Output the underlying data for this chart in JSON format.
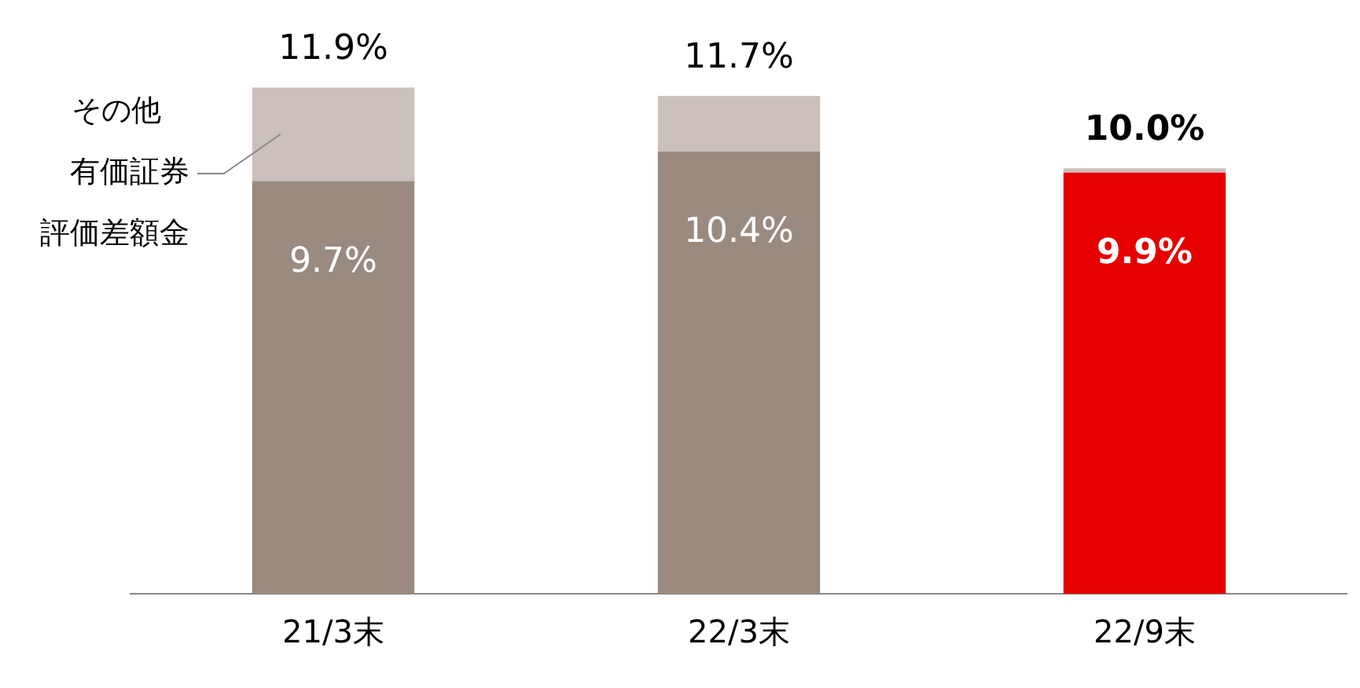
{
  "chart_data": {
    "type": "bar",
    "stacked": true,
    "categories": [
      "21/3末",
      "22/3末",
      "22/9末"
    ],
    "series": [
      {
        "color": "#9b8a80",
        "colors": [
          "#9b8a80",
          "#9b8a80",
          "#e60000"
        ],
        "values": [
          9.7,
          10.4,
          9.9
        ],
        "value_labels": [
          "9.7%",
          "10.4%",
          "9.9%"
        ]
      },
      {
        "name": "その他有価証券評価差額金",
        "color": "#cbc0bb",
        "values": [
          2.2,
          1.3,
          0.1
        ]
      }
    ],
    "totals": [
      "11.9%",
      "11.7%",
      "10.0%"
    ],
    "grid": false,
    "legend": false
  }
}
